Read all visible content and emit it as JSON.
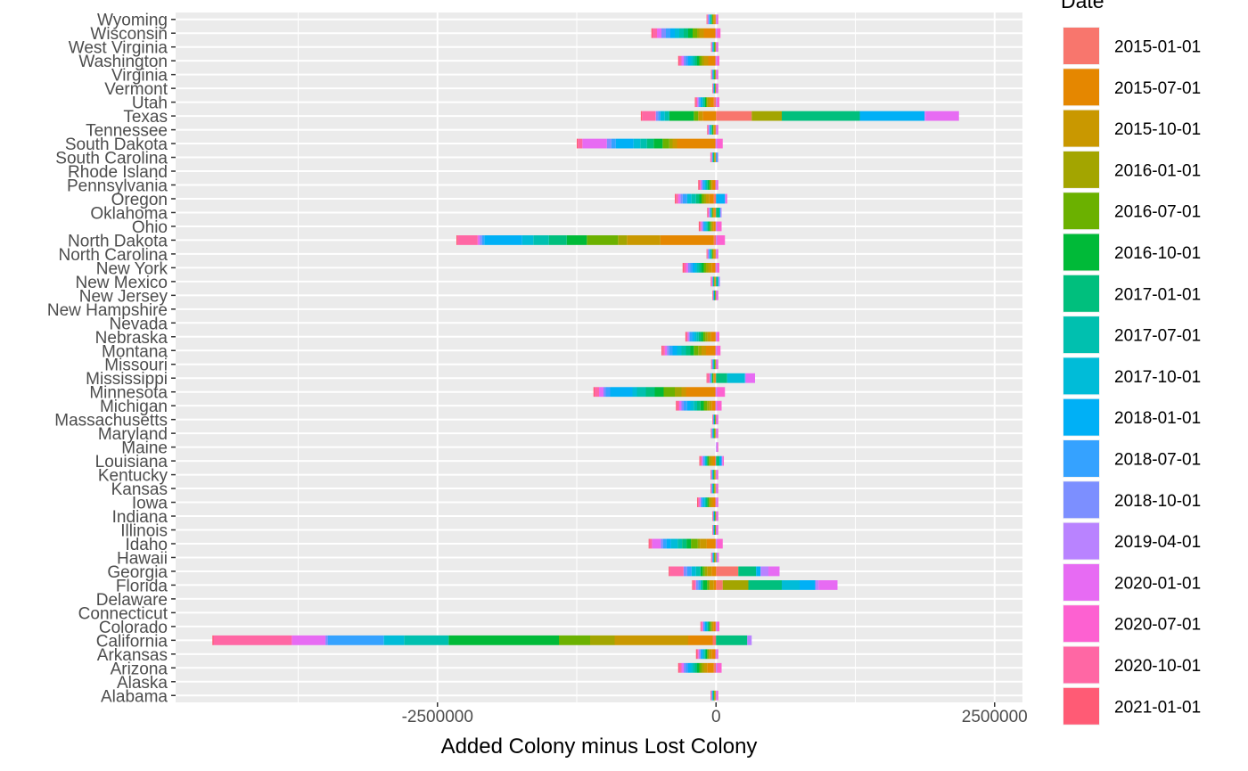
{
  "chart_data": {
    "type": "bar",
    "orientation": "horizontal",
    "stacked": true,
    "title": "",
    "xlabel": "Added Colony minus Lost Colony",
    "ylabel": "",
    "xlim": [
      -4850000,
      2750000
    ],
    "x_ticks": [
      -2500000,
      0,
      2500000
    ],
    "x_tick_labels": [
      "-2500000",
      "0",
      "2500000"
    ],
    "grid": true,
    "legend": {
      "title": "Date",
      "position": "right"
    },
    "categories": [
      "Alabama",
      "Alaska",
      "Arizona",
      "Arkansas",
      "California",
      "Colorado",
      "Connecticut",
      "Delaware",
      "Florida",
      "Georgia",
      "Hawaii",
      "Idaho",
      "Illinois",
      "Indiana",
      "Iowa",
      "Kansas",
      "Kentucky",
      "Louisiana",
      "Maine",
      "Maryland",
      "Massachusetts",
      "Michigan",
      "Minnesota",
      "Mississippi",
      "Missouri",
      "Montana",
      "Nebraska",
      "Nevada",
      "New Hampshire",
      "New Jersey",
      "New Mexico",
      "New York",
      "North Carolina",
      "North Dakota",
      "Ohio",
      "Oklahoma",
      "Oregon",
      "Pennsylvania",
      "Rhode Island",
      "South Carolina",
      "South Dakota",
      "Tennessee",
      "Texas",
      "Utah",
      "Vermont",
      "Virginia",
      "Washington",
      "West Virginia",
      "Wisconsin",
      "Wyoming"
    ],
    "series": [
      {
        "name": "2015-01-01",
        "color": "#F8766D",
        "values": [
          -5000,
          0,
          -20000,
          -10000,
          -30000,
          -5000,
          0,
          0,
          60000,
          200000,
          -5000,
          -5000,
          -3000,
          -2000,
          -10000,
          -3000,
          -3000,
          -10000,
          0,
          -3000,
          -2000,
          -10000,
          -10000,
          -5000,
          -2000,
          -10000,
          -5000,
          0,
          0,
          -2000,
          -5000,
          -10000,
          -5000,
          -20000,
          -5000,
          -5000,
          -20000,
          -10000,
          0,
          -5000,
          -10000,
          -5000,
          320000,
          -20000,
          -2000,
          -3000,
          -10000,
          -3000,
          -10000,
          -5000
        ]
      },
      {
        "name": "2015-07-01",
        "color": "#E58700",
        "values": [
          -5000,
          0,
          -60000,
          -30000,
          -220000,
          -20000,
          0,
          0,
          -20000,
          -40000,
          -3000,
          -80000,
          -3000,
          -3000,
          -20000,
          -5000,
          -5000,
          -20000,
          0,
          -5000,
          -3000,
          -30000,
          -260000,
          -10000,
          -3000,
          -80000,
          -40000,
          0,
          0,
          -3000,
          -5000,
          -30000,
          -10000,
          -480000,
          -20000,
          -10000,
          -40000,
          -20000,
          0,
          -5000,
          -340000,
          -10000,
          -120000,
          -30000,
          -3000,
          -3000,
          -60000,
          -3000,
          -100000,
          -10000
        ]
      },
      {
        "name": "2015-10-01",
        "color": "#C99800",
        "values": [
          -3000,
          0,
          -30000,
          -20000,
          -660000,
          -10000,
          0,
          0,
          -40000,
          -40000,
          -3000,
          -60000,
          -2000,
          -3000,
          -20000,
          -5000,
          -5000,
          -20000,
          0,
          -3000,
          -3000,
          -20000,
          -40000,
          -5000,
          -3000,
          -40000,
          -30000,
          0,
          0,
          -3000,
          -3000,
          -30000,
          -10000,
          -300000,
          -10000,
          -10000,
          -30000,
          -10000,
          0,
          -3000,
          -40000,
          -5000,
          -40000,
          -20000,
          -3000,
          -3000,
          -40000,
          -3000,
          -40000,
          -10000
        ]
      },
      {
        "name": "2016-01-01",
        "color": "#A3A500",
        "values": [
          -3000,
          0,
          -20000,
          -10000,
          -220000,
          -10000,
          0,
          0,
          230000,
          -20000,
          -3000,
          -20000,
          -2000,
          -2000,
          -10000,
          -3000,
          -3000,
          -10000,
          0,
          -3000,
          -2000,
          -20000,
          -60000,
          -5000,
          -3000,
          -30000,
          -20000,
          0,
          0,
          -2000,
          -3000,
          -20000,
          -5000,
          -80000,
          -10000,
          -5000,
          -20000,
          -10000,
          0,
          -3000,
          -30000,
          -5000,
          270000,
          -10000,
          -2000,
          -3000,
          -20000,
          -3000,
          -20000,
          -5000
        ]
      },
      {
        "name": "2016-07-01",
        "color": "#6BB100",
        "values": [
          -3000,
          0,
          -20000,
          -10000,
          -280000,
          -10000,
          0,
          0,
          -20000,
          -20000,
          -3000,
          -60000,
          -2000,
          -2000,
          -10000,
          -3000,
          -3000,
          -10000,
          0,
          -3000,
          -2000,
          -30000,
          -100000,
          -5000,
          -3000,
          -40000,
          -20000,
          0,
          0,
          -2000,
          -3000,
          -20000,
          -5000,
          -280000,
          -10000,
          -5000,
          -20000,
          -10000,
          0,
          -3000,
          -60000,
          -5000,
          -40000,
          -10000,
          -2000,
          -3000,
          -20000,
          -3000,
          -40000,
          -5000
        ]
      },
      {
        "name": "2016-10-01",
        "color": "#00BA38",
        "values": [
          -3000,
          0,
          -20000,
          -10000,
          -990000,
          -10000,
          0,
          0,
          -40000,
          -20000,
          -3000,
          -40000,
          -2000,
          -2000,
          -10000,
          -3000,
          -3000,
          -10000,
          0,
          -3000,
          -2000,
          -30000,
          -80000,
          -5000,
          -3000,
          -30000,
          -20000,
          0,
          0,
          -2000,
          -3000,
          -20000,
          -5000,
          -180000,
          -10000,
          -5000,
          -20000,
          -10000,
          0,
          -3000,
          -80000,
          -5000,
          -220000,
          -10000,
          -2000,
          -3000,
          -20000,
          -3000,
          -40000,
          -5000
        ]
      },
      {
        "name": "2017-01-01",
        "color": "#00BF7D",
        "values": [
          -3000,
          0,
          -20000,
          -10000,
          280000,
          -5000,
          0,
          0,
          300000,
          160000,
          5000,
          -40000,
          -2000,
          -2000,
          -10000,
          -3000,
          -3000,
          30000,
          0,
          -3000,
          -2000,
          -30000,
          -80000,
          100000,
          -3000,
          -40000,
          -20000,
          0,
          0,
          -2000,
          15000,
          -20000,
          -5000,
          -160000,
          -10000,
          30000,
          -30000,
          -10000,
          0,
          -3000,
          -60000,
          -5000,
          700000,
          -10000,
          -2000,
          -3000,
          -20000,
          -3000,
          -40000,
          -5000
        ]
      },
      {
        "name": "2017-07-01",
        "color": "#00C0AF",
        "values": [
          -3000,
          0,
          -20000,
          -10000,
          -400000,
          -10000,
          0,
          0,
          -20000,
          -40000,
          -3000,
          -40000,
          -2000,
          -2000,
          -10000,
          -3000,
          -3000,
          -10000,
          0,
          -3000,
          -2000,
          -30000,
          -80000,
          -5000,
          -3000,
          -40000,
          -20000,
          0,
          0,
          -2000,
          -3000,
          -20000,
          -5000,
          -140000,
          -10000,
          -5000,
          -40000,
          -10000,
          0,
          -3000,
          -60000,
          -5000,
          -40000,
          -10000,
          -2000,
          -3000,
          -20000,
          -3000,
          -40000,
          -5000
        ]
      },
      {
        "name": "2017-10-01",
        "color": "#00BCD8",
        "values": [
          -3000,
          0,
          -20000,
          -10000,
          -180000,
          -10000,
          0,
          0,
          160000,
          -40000,
          -3000,
          -60000,
          -2000,
          -2000,
          -10000,
          -3000,
          -3000,
          -10000,
          0,
          -3000,
          -2000,
          -30000,
          -40000,
          160000,
          -3000,
          -40000,
          -20000,
          0,
          0,
          -2000,
          -3000,
          -20000,
          -5000,
          -100000,
          -10000,
          -5000,
          -40000,
          -10000,
          0,
          -3000,
          -60000,
          -5000,
          -40000,
          -10000,
          -2000,
          -3000,
          -20000,
          -3000,
          -40000,
          -5000
        ]
      },
      {
        "name": "2018-01-01",
        "color": "#00B0F6",
        "values": [
          -3000,
          0,
          -20000,
          -10000,
          -5000,
          -10000,
          0,
          0,
          140000,
          40000,
          -3000,
          -40000,
          -2000,
          -2000,
          -10000,
          -3000,
          -3000,
          20000,
          0,
          -3000,
          -2000,
          -30000,
          -200000,
          -5000,
          -3000,
          -40000,
          -20000,
          0,
          0,
          -2000,
          10000,
          -20000,
          -5000,
          -340000,
          -10000,
          10000,
          80000,
          -10000,
          0,
          10000,
          -160000,
          -5000,
          580000,
          -10000,
          -2000,
          -3000,
          -20000,
          -3000,
          -40000,
          -5000
        ]
      },
      {
        "name": "2018-07-01",
        "color": "#35A2FF",
        "values": [
          -3000,
          0,
          -20000,
          -10000,
          -500000,
          -10000,
          0,
          0,
          -20000,
          -40000,
          -3000,
          -30000,
          -2000,
          -2000,
          -10000,
          -3000,
          -3000,
          -10000,
          0,
          -3000,
          -2000,
          -30000,
          -40000,
          -5000,
          -3000,
          -30000,
          -20000,
          0,
          0,
          -2000,
          -3000,
          -20000,
          -5000,
          -20000,
          -10000,
          -5000,
          -40000,
          -10000,
          0,
          -3000,
          -40000,
          -5000,
          -20000,
          -10000,
          -2000,
          -3000,
          -20000,
          -3000,
          -40000,
          -5000
        ]
      },
      {
        "name": "2018-10-01",
        "color": "#7C8FFF",
        "values": [
          -3000,
          0,
          -20000,
          -10000,
          -20000,
          -5000,
          0,
          0,
          -20000,
          -30000,
          -3000,
          -20000,
          -2000,
          -2000,
          -10000,
          -3000,
          -3000,
          -10000,
          0,
          -3000,
          -2000,
          -20000,
          -20000,
          -5000,
          -3000,
          -20000,
          -10000,
          0,
          0,
          -2000,
          -3000,
          -20000,
          -5000,
          -20000,
          -10000,
          -5000,
          -20000,
          -10000,
          0,
          -3000,
          -40000,
          -5000,
          -20000,
          -10000,
          -2000,
          -3000,
          -20000,
          -3000,
          -40000,
          -5000
        ]
      },
      {
        "name": "2019-04-01",
        "color": "#B983FF",
        "values": [
          10000,
          0,
          10000,
          10000,
          40000,
          10000,
          0,
          0,
          30000,
          70000,
          10000,
          10000,
          10000,
          10000,
          10000,
          10000,
          10000,
          10000,
          10000,
          10000,
          10000,
          10000,
          10000,
          10000,
          10000,
          10000,
          10000,
          0,
          0,
          10000,
          10000,
          10000,
          10000,
          10000,
          10000,
          10000,
          10000,
          10000,
          0,
          10000,
          10000,
          10000,
          10000,
          10000,
          10000,
          10000,
          10000,
          10000,
          10000,
          10000
        ]
      },
      {
        "name": "2020-01-01",
        "color": "#E76BF3",
        "values": [
          -3000,
          0,
          -20000,
          -10000,
          -300000,
          -10000,
          0,
          0,
          170000,
          100000,
          -3000,
          -80000,
          -2000,
          -2000,
          -10000,
          -3000,
          -3000,
          -10000,
          0,
          -3000,
          -2000,
          -20000,
          -40000,
          80000,
          -3000,
          -20000,
          -10000,
          0,
          0,
          -2000,
          -3000,
          -20000,
          -5000,
          -20000,
          -10000,
          -5000,
          -20000,
          -10000,
          0,
          -3000,
          -220000,
          -5000,
          300000,
          -10000,
          -2000,
          -3000,
          -20000,
          -3000,
          -40000,
          -5000
        ]
      },
      {
        "name": "2020-07-01",
        "color": "#FD61D1",
        "values": [
          10000,
          0,
          40000,
          10000,
          -5000,
          20000,
          0,
          0,
          -5000,
          -5000,
          10000,
          50000,
          10000,
          10000,
          10000,
          10000,
          10000,
          10000,
          10000,
          10000,
          10000,
          40000,
          70000,
          -5000,
          10000,
          30000,
          20000,
          0,
          0,
          10000,
          -5000,
          20000,
          10000,
          70000,
          40000,
          -5000,
          10000,
          10000,
          0,
          -5000,
          50000,
          10000,
          -5000,
          20000,
          10000,
          10000,
          20000,
          10000,
          30000,
          10000
        ]
      },
      {
        "name": "2020-10-01",
        "color": "#FF67A4",
        "values": [
          -3000,
          0,
          -20000,
          -10000,
          -700000,
          -10000,
          0,
          0,
          -20000,
          -120000,
          -3000,
          -20000,
          -2000,
          -2000,
          -10000,
          -3000,
          -3000,
          -10000,
          0,
          -3000,
          -2000,
          -20000,
          -40000,
          -20000,
          -3000,
          -20000,
          -10000,
          0,
          0,
          -2000,
          -3000,
          -20000,
          -5000,
          -180000,
          -10000,
          -5000,
          -20000,
          -10000,
          0,
          -3000,
          -40000,
          -5000,
          -120000,
          -10000,
          -2000,
          -3000,
          -20000,
          -3000,
          -40000,
          -5000
        ]
      },
      {
        "name": "2021-01-01",
        "color": "#FF5B75",
        "values": [
          -3000,
          0,
          -10000,
          -10000,
          -10000,
          -5000,
          0,
          0,
          -10000,
          -10000,
          -3000,
          -10000,
          -2000,
          -2000,
          -10000,
          -3000,
          -3000,
          -10000,
          0,
          -3000,
          -2000,
          -10000,
          -10000,
          -5000,
          -3000,
          -10000,
          -10000,
          0,
          0,
          -2000,
          -3000,
          -10000,
          -5000,
          -10000,
          -10000,
          -5000,
          -10000,
          -10000,
          0,
          -3000,
          -10000,
          -5000,
          -10000,
          -10000,
          -2000,
          -3000,
          -10000,
          -3000,
          -10000,
          -5000
        ]
      }
    ]
  }
}
